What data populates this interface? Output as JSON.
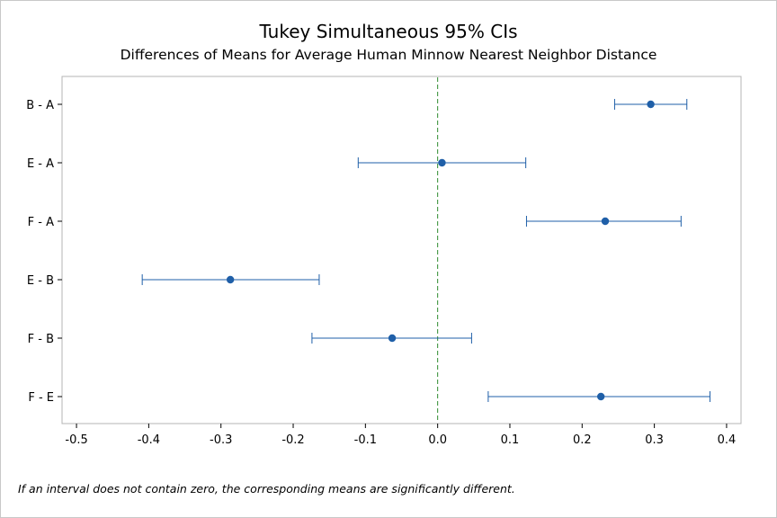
{
  "chart_data": {
    "type": "scatter",
    "title": "Tukey Simultaneous 95% CIs",
    "subtitle": "Differences of Means for Average Human Minnow Nearest Neighbor Distance",
    "xlabel": "",
    "ylabel": "",
    "xlim": [
      -0.52,
      0.42
    ],
    "x_ticks": [
      -0.5,
      -0.4,
      -0.3,
      -0.2,
      -0.1,
      0.0,
      0.1,
      0.2,
      0.3,
      0.4
    ],
    "x_tick_labels": [
      "-0.5",
      "-0.4",
      "-0.3",
      "-0.2",
      "-0.1",
      "0.0",
      "0.1",
      "0.2",
      "0.3",
      "0.4"
    ],
    "reference_line": {
      "x": 0.0,
      "style": "dashed",
      "color": "#2e8b2e"
    },
    "point_color": "#1f5fa8",
    "grid": false,
    "series": [
      {
        "label": "B - A",
        "estimate": 0.295,
        "lower": 0.245,
        "upper": 0.345
      },
      {
        "label": "E - A",
        "estimate": 0.006,
        "lower": -0.11,
        "upper": 0.122
      },
      {
        "label": "F - A",
        "estimate": 0.232,
        "lower": 0.123,
        "upper": 0.337
      },
      {
        "label": "E - B",
        "estimate": -0.287,
        "lower": -0.409,
        "upper": -0.164
      },
      {
        "label": "F - B",
        "estimate": -0.063,
        "lower": -0.174,
        "upper": 0.047
      },
      {
        "label": "F - E",
        "estimate": 0.226,
        "lower": 0.07,
        "upper": 0.377
      }
    ]
  },
  "footnote": "If an interval does not contain zero, the corresponding means are significantly different."
}
